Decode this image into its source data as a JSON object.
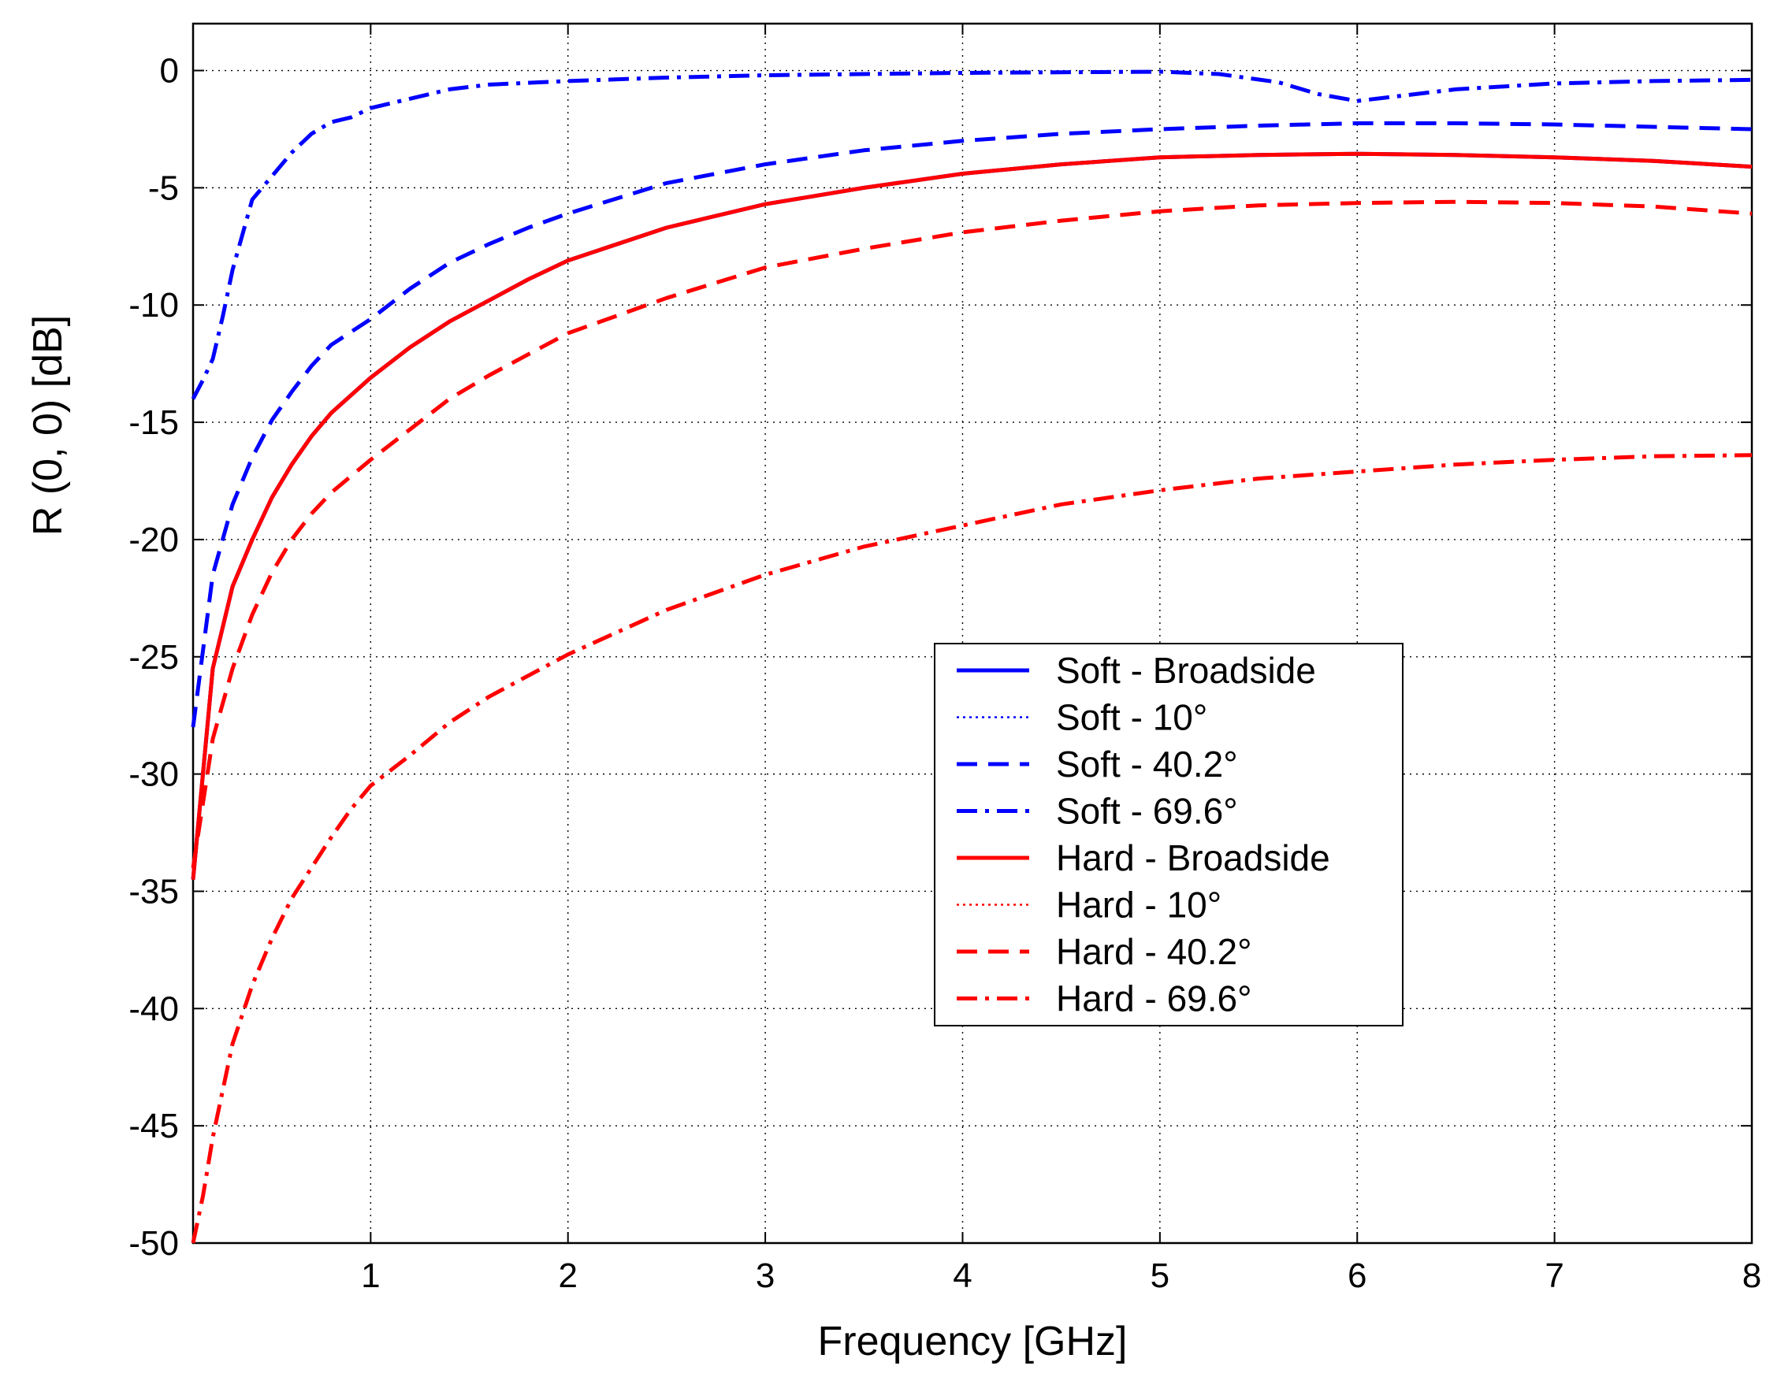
{
  "chart_data": {
    "type": "line",
    "xlabel": "Frequency [GHz]",
    "ylabel": "R (0, 0) [dB]",
    "xlim": [
      0.1,
      8
    ],
    "ylim": [
      -50,
      2
    ],
    "xticks": [
      1,
      2,
      3,
      4,
      5,
      6,
      7,
      8
    ],
    "yticks": [
      0,
      -5,
      -10,
      -15,
      -20,
      -25,
      -30,
      -35,
      -40,
      -45,
      -50
    ],
    "grid": true,
    "legend_position": "center-right",
    "series": [
      {
        "name": "Soft - Broadside",
        "color": "#0000ff",
        "style": "solid",
        "x": [
          0.1,
          0.2,
          0.3,
          0.4,
          0.5,
          0.6,
          0.7,
          0.8,
          1.0,
          1.2,
          1.4,
          1.6,
          1.8,
          2.0,
          2.5,
          3.0,
          3.5,
          4.0,
          4.5,
          5.0,
          5.5,
          6.0,
          6.5,
          7.0,
          7.5,
          8.0
        ],
        "y": [
          -34.5,
          -25.5,
          -22.0,
          -20.0,
          -18.2,
          -16.8,
          -15.6,
          -14.6,
          -13.1,
          -11.8,
          -10.7,
          -9.8,
          -8.9,
          -8.1,
          -6.7,
          -5.7,
          -5.0,
          -4.4,
          -4.0,
          -3.7,
          -3.6,
          -3.55,
          -3.6,
          -3.7,
          -3.85,
          -4.1
        ]
      },
      {
        "name": "Soft - 10°",
        "color": "#0000ff",
        "style": "dotted",
        "x": [
          0.1,
          0.2,
          0.3,
          0.4,
          0.5,
          0.6,
          0.7,
          0.8,
          1.0,
          1.2,
          1.4,
          1.6,
          1.8,
          2.0,
          2.5,
          3.0,
          3.5,
          4.0,
          4.5,
          5.0,
          5.5,
          6.0,
          6.5,
          7.0,
          7.5,
          8.0
        ],
        "y": [
          -34.5,
          -25.5,
          -22.0,
          -20.0,
          -18.2,
          -16.8,
          -15.6,
          -14.6,
          -13.1,
          -11.8,
          -10.7,
          -9.8,
          -8.9,
          -8.1,
          -6.7,
          -5.7,
          -5.0,
          -4.4,
          -4.0,
          -3.7,
          -3.6,
          -3.55,
          -3.6,
          -3.7,
          -3.85,
          -4.1
        ]
      },
      {
        "name": "Soft - 40.2°",
        "color": "#0000ff",
        "style": "dashed",
        "x": [
          0.1,
          0.2,
          0.3,
          0.4,
          0.5,
          0.6,
          0.7,
          0.8,
          1.0,
          1.2,
          1.4,
          1.6,
          1.8,
          2.0,
          2.5,
          3.0,
          3.5,
          4.0,
          4.5,
          5.0,
          5.5,
          6.0,
          6.5,
          7.0,
          7.5,
          8.0
        ],
        "y": [
          -28.0,
          -21.5,
          -18.5,
          -16.5,
          -14.9,
          -13.7,
          -12.6,
          -11.7,
          -10.6,
          -9.3,
          -8.2,
          -7.4,
          -6.7,
          -6.1,
          -4.8,
          -4.0,
          -3.4,
          -3.0,
          -2.7,
          -2.5,
          -2.35,
          -2.25,
          -2.25,
          -2.3,
          -2.4,
          -2.5
        ]
      },
      {
        "name": "Soft - 69.6°",
        "color": "#0000ff",
        "style": "dashdot",
        "x": [
          0.1,
          0.15,
          0.2,
          0.25,
          0.3,
          0.4,
          0.5,
          0.6,
          0.7,
          0.8,
          0.9,
          1.0,
          1.2,
          1.4,
          1.6,
          2.0,
          2.5,
          3.0,
          4.0,
          5.0,
          5.3,
          5.6,
          5.8,
          6.0,
          6.2,
          6.5,
          7.0,
          7.5,
          8.0
        ],
        "y": [
          -14.0,
          -13.2,
          -12.3,
          -10.5,
          -8.5,
          -5.5,
          -4.5,
          -3.5,
          -2.7,
          -2.2,
          -2.0,
          -1.6,
          -1.2,
          -0.8,
          -0.6,
          -0.45,
          -0.3,
          -0.2,
          -0.1,
          -0.05,
          -0.15,
          -0.5,
          -1.0,
          -1.3,
          -1.1,
          -0.8,
          -0.55,
          -0.45,
          -0.4
        ]
      },
      {
        "name": "Hard - Broadside",
        "color": "#ff0000",
        "style": "solid",
        "x": [
          0.1,
          0.2,
          0.3,
          0.4,
          0.5,
          0.6,
          0.7,
          0.8,
          1.0,
          1.2,
          1.4,
          1.6,
          1.8,
          2.0,
          2.5,
          3.0,
          3.5,
          4.0,
          4.5,
          5.0,
          5.5,
          6.0,
          6.5,
          7.0,
          7.5,
          8.0
        ],
        "y": [
          -34.5,
          -25.5,
          -22.0,
          -20.0,
          -18.2,
          -16.8,
          -15.6,
          -14.6,
          -13.1,
          -11.8,
          -10.7,
          -9.8,
          -8.9,
          -8.1,
          -6.7,
          -5.7,
          -5.0,
          -4.4,
          -4.0,
          -3.7,
          -3.6,
          -3.55,
          -3.6,
          -3.7,
          -3.85,
          -4.1
        ]
      },
      {
        "name": "Hard - 10°",
        "color": "#ff0000",
        "style": "dotted",
        "x": [
          0.1,
          0.2,
          0.3,
          0.4,
          0.5,
          0.6,
          0.7,
          0.8,
          1.0,
          1.2,
          1.4,
          1.6,
          1.8,
          2.0,
          2.5,
          3.0,
          3.5,
          4.0,
          4.5,
          5.0,
          5.5,
          6.0,
          6.5,
          7.0,
          7.5,
          8.0
        ],
        "y": [
          -34.5,
          -25.5,
          -22.0,
          -20.0,
          -18.2,
          -16.8,
          -15.6,
          -14.6,
          -13.1,
          -11.8,
          -10.7,
          -9.8,
          -8.9,
          -8.1,
          -6.7,
          -5.7,
          -5.0,
          -4.4,
          -4.0,
          -3.7,
          -3.6,
          -3.55,
          -3.6,
          -3.7,
          -3.85,
          -4.1
        ]
      },
      {
        "name": "Hard - 40.2°",
        "color": "#ff0000",
        "style": "dashed",
        "x": [
          0.1,
          0.2,
          0.3,
          0.4,
          0.5,
          0.6,
          0.7,
          0.8,
          1.0,
          1.2,
          1.4,
          1.6,
          1.8,
          2.0,
          2.5,
          3.0,
          3.5,
          4.0,
          4.5,
          5.0,
          5.5,
          6.0,
          6.5,
          7.0,
          7.5,
          8.0
        ],
        "y": [
          -34.0,
          -28.5,
          -25.5,
          -23.2,
          -21.4,
          -20.0,
          -18.9,
          -18.0,
          -16.6,
          -15.3,
          -14.0,
          -13.0,
          -12.1,
          -11.2,
          -9.7,
          -8.4,
          -7.6,
          -6.9,
          -6.4,
          -6.0,
          -5.75,
          -5.65,
          -5.6,
          -5.65,
          -5.8,
          -6.1
        ]
      },
      {
        "name": "Hard - 69.6°",
        "color": "#ff0000",
        "style": "dashdot",
        "x": [
          0.1,
          0.15,
          0.2,
          0.3,
          0.4,
          0.5,
          0.6,
          0.7,
          0.8,
          0.9,
          1.0,
          1.2,
          1.4,
          1.6,
          1.8,
          2.0,
          2.5,
          3.0,
          3.5,
          4.0,
          4.5,
          5.0,
          5.5,
          6.0,
          6.5,
          7.0,
          7.5,
          8.0
        ],
        "y": [
          -50.0,
          -48.0,
          -45.5,
          -41.5,
          -39.0,
          -37.0,
          -35.3,
          -34.0,
          -32.7,
          -31.5,
          -30.5,
          -29.2,
          -27.8,
          -26.7,
          -25.8,
          -24.9,
          -23.0,
          -21.5,
          -20.3,
          -19.4,
          -18.5,
          -17.9,
          -17.4,
          -17.1,
          -16.8,
          -16.6,
          -16.45,
          -16.4
        ]
      }
    ]
  }
}
